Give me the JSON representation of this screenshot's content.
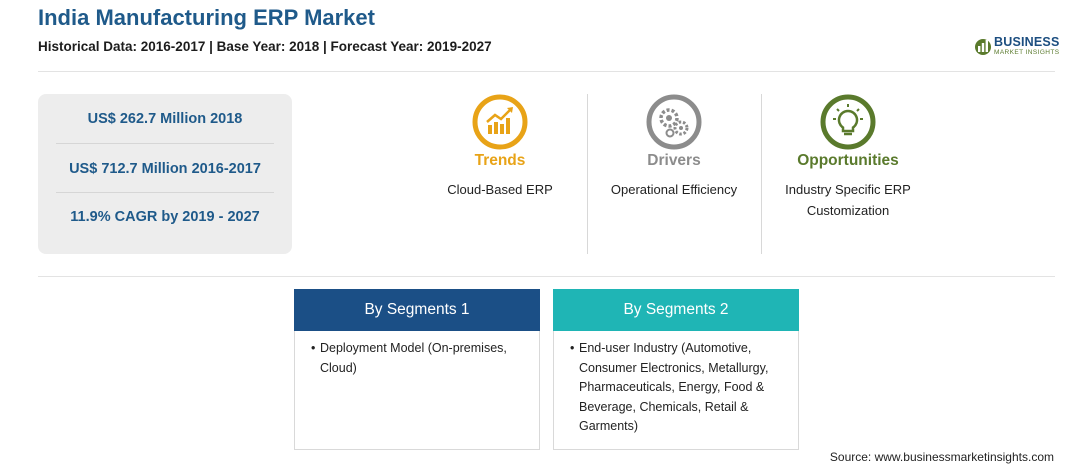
{
  "header": {
    "title": "India Manufacturing ERP Market",
    "subtitle": "Historical Data: 2016-2017 | Base Year: 2018 | Forecast Year: 2019-2027"
  },
  "logo": {
    "name": "BUSINESS",
    "sub": "MARKET INSIGHTS"
  },
  "stats": [
    "US$ 262.7 Million 2018",
    "US$ 712.7 Million 2016-2017",
    "11.9% CAGR by 2019 - 2027"
  ],
  "kpis": {
    "trends": {
      "label": "Trends",
      "text": "Cloud-Based ERP",
      "color": "#e8a317",
      "icon": "chart-up-icon"
    },
    "drivers": {
      "label": "Drivers",
      "text": "Operational Efficiency",
      "color": "#8c8c8c",
      "icon": "gears-icon"
    },
    "opportunities": {
      "label": "Opportunities",
      "text": "Industry Specific ERP Customization",
      "color": "#5a7a2c",
      "icon": "lightbulb-icon"
    }
  },
  "segments": [
    {
      "title": "By Segments 1",
      "color": "#1b4f86",
      "items": [
        "Deployment Model (On-premises, Cloud)"
      ]
    },
    {
      "title": "By Segments 2",
      "color": "#1fb5b5",
      "items": [
        "End-user Industry (Automotive, Consumer Electronics, Metallurgy, Pharmaceuticals, Energy, Food & Beverage, Chemicals, Retail & Garments)"
      ]
    }
  ],
  "source": "Source: www.businessmarketinsights.com"
}
